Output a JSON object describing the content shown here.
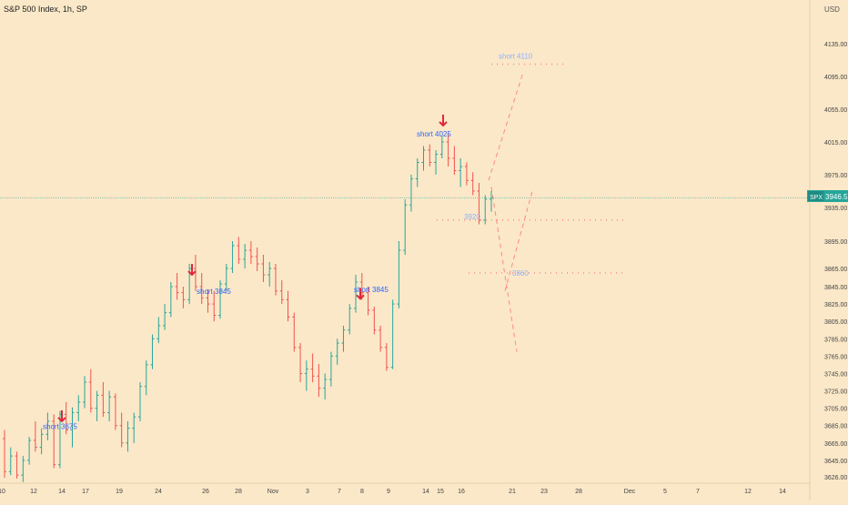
{
  "header": {
    "title": "S&P 500 Index, 1h, SP",
    "currency": "USD"
  },
  "price_badge": {
    "symbol": "SPX",
    "value": "3946.55"
  },
  "chart_data": {
    "type": "candlestick",
    "title": "S&P 500 Index, 1h, SP",
    "ylim": [
      3612,
      4150
    ],
    "y_ticks": [
      4135,
      4095,
      4055,
      4015,
      3975,
      3935,
      3895,
      3865,
      3845,
      3825,
      3805,
      3785,
      3765,
      3745,
      3725,
      3705,
      3685,
      3665,
      3645,
      3626
    ],
    "y_tick_labels": [
      "4135.00",
      "4095.00",
      "4055.00",
      "4015.00",
      "3975.00",
      "3935.00",
      "3895.00",
      "3865.00",
      "3845.00",
      "3825.00",
      "3805.00",
      "3785.00",
      "3765.00",
      "3745.00",
      "3725.00",
      "3705.00",
      "3685.00",
      "3665.00",
      "3645.00",
      "3626.00"
    ],
    "x_labels": [
      "10",
      "12",
      "14",
      "17",
      "19",
      "24",
      "26",
      "28",
      "Nov",
      "3",
      "7",
      "8",
      "9",
      "14",
      "15",
      "16",
      "21",
      "23",
      "28",
      "Dec",
      "5",
      "7",
      "12",
      "14"
    ],
    "last_price": 3946.55,
    "bars": [
      [
        3670,
        3680,
        3625,
        3632
      ],
      [
        3632,
        3660,
        3628,
        3650
      ],
      [
        3650,
        3655,
        3624,
        3628
      ],
      [
        3628,
        3650,
        3620,
        3645
      ],
      [
        3645,
        3672,
        3640,
        3668
      ],
      [
        3668,
        3690,
        3655,
        3660
      ],
      [
        3660,
        3682,
        3652,
        3675
      ],
      [
        3675,
        3700,
        3668,
        3690
      ],
      [
        3690,
        3698,
        3636,
        3640
      ],
      [
        3640,
        3702,
        3636,
        3698
      ],
      [
        3698,
        3712,
        3675,
        3680
      ],
      [
        3680,
        3706,
        3660,
        3700
      ],
      [
        3700,
        3720,
        3690,
        3712
      ],
      [
        3712,
        3742,
        3705,
        3735
      ],
      [
        3735,
        3750,
        3700,
        3705
      ],
      [
        3705,
        3725,
        3690,
        3720
      ],
      [
        3720,
        3735,
        3695,
        3700
      ],
      [
        3700,
        3725,
        3690,
        3718
      ],
      [
        3718,
        3722,
        3680,
        3685
      ],
      [
        3685,
        3700,
        3660,
        3665
      ],
      [
        3665,
        3690,
        3655,
        3682
      ],
      [
        3682,
        3700,
        3665,
        3695
      ],
      [
        3695,
        3735,
        3690,
        3730
      ],
      [
        3730,
        3760,
        3720,
        3755
      ],
      [
        3755,
        3790,
        3750,
        3785
      ],
      [
        3785,
        3810,
        3780,
        3800
      ],
      [
        3800,
        3825,
        3795,
        3815
      ],
      [
        3815,
        3850,
        3810,
        3845
      ],
      [
        3845,
        3860,
        3830,
        3838
      ],
      [
        3838,
        3845,
        3820,
        3830
      ],
      [
        3830,
        3870,
        3825,
        3865
      ],
      [
        3865,
        3880,
        3840,
        3845
      ],
      [
        3845,
        3860,
        3825,
        3832
      ],
      [
        3832,
        3842,
        3815,
        3825
      ],
      [
        3825,
        3840,
        3805,
        3812
      ],
      [
        3812,
        3852,
        3808,
        3848
      ],
      [
        3848,
        3870,
        3840,
        3865
      ],
      [
        3865,
        3895,
        3860,
        3890
      ],
      [
        3890,
        3900,
        3870,
        3875
      ],
      [
        3875,
        3892,
        3865,
        3885
      ],
      [
        3885,
        3895,
        3870,
        3878
      ],
      [
        3878,
        3888,
        3862,
        3870
      ],
      [
        3870,
        3880,
        3850,
        3858
      ],
      [
        3858,
        3872,
        3845,
        3865
      ],
      [
        3865,
        3870,
        3835,
        3840
      ],
      [
        3840,
        3852,
        3825,
        3830
      ],
      [
        3830,
        3840,
        3805,
        3810
      ],
      [
        3810,
        3815,
        3770,
        3775
      ],
      [
        3775,
        3780,
        3735,
        3745
      ],
      [
        3745,
        3760,
        3725,
        3750
      ],
      [
        3750,
        3768,
        3735,
        3742
      ],
      [
        3742,
        3756,
        3718,
        3728
      ],
      [
        3728,
        3745,
        3715,
        3738
      ],
      [
        3738,
        3770,
        3730,
        3765
      ],
      [
        3765,
        3785,
        3755,
        3780
      ],
      [
        3780,
        3800,
        3770,
        3795
      ],
      [
        3795,
        3825,
        3790,
        3820
      ],
      [
        3820,
        3858,
        3815,
        3850
      ],
      [
        3850,
        3860,
        3830,
        3838
      ],
      [
        3838,
        3845,
        3812,
        3818
      ],
      [
        3818,
        3822,
        3790,
        3795
      ],
      [
        3795,
        3800,
        3770,
        3775
      ],
      [
        3775,
        3780,
        3748,
        3752
      ],
      [
        3752,
        3830,
        3750,
        3825
      ],
      [
        3825,
        3895,
        3820,
        3885
      ],
      [
        3885,
        3945,
        3880,
        3938
      ],
      [
        3938,
        3975,
        3930,
        3970
      ],
      [
        3970,
        3995,
        3960,
        3990
      ],
      [
        3990,
        4010,
        3980,
        4005
      ],
      [
        4005,
        4012,
        3985,
        3990
      ],
      [
        3990,
        4005,
        3975,
        4000
      ],
      [
        4000,
        4022,
        3995,
        4015
      ],
      [
        4015,
        4025,
        3985,
        3995
      ],
      [
        3995,
        4010,
        3975,
        3980
      ],
      [
        3980,
        3995,
        3960,
        3985
      ],
      [
        3985,
        3990,
        3962,
        3968
      ],
      [
        3968,
        3978,
        3950,
        3955
      ],
      [
        3955,
        3965,
        3915,
        3920
      ],
      [
        3920,
        3950,
        3915,
        3945
      ],
      [
        3945,
        3955,
        3930,
        3946.55
      ]
    ],
    "annotations": [
      {
        "text": "short 3675",
        "price": 3675
      },
      {
        "text": "short 3845",
        "price": 3845
      },
      {
        "text": "short 3845",
        "price": 3845
      },
      {
        "text": "short 4025",
        "price": 4025
      },
      {
        "text": "short 4110",
        "price": 4110
      },
      {
        "text": "3920",
        "price": 3920
      },
      {
        "text": "3860",
        "price": 3860
      }
    ],
    "colors": {
      "up": "#26a69a",
      "down": "#ef5350",
      "arrow": "#e0283a",
      "annotation": "#2962ff",
      "projection": "#ff8a80",
      "price_line": "#26a69a"
    },
    "grid": false
  }
}
